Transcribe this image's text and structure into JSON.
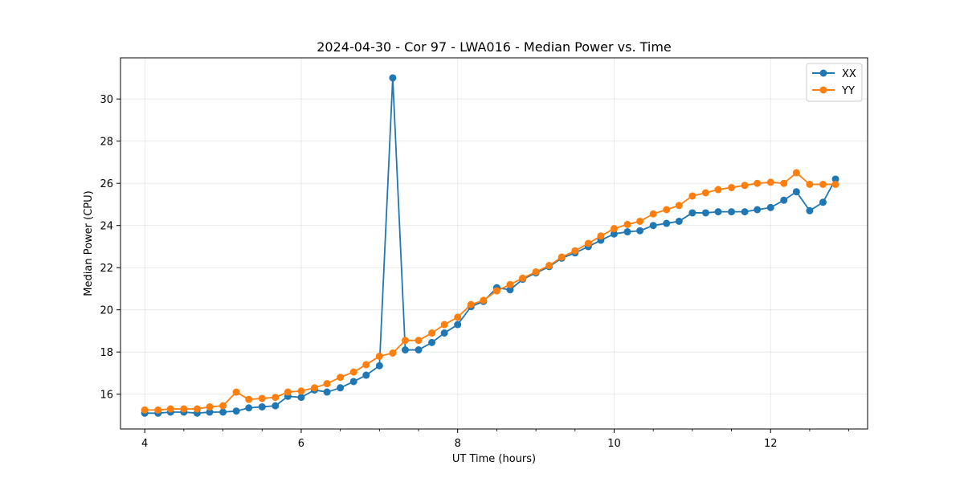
{
  "chart_data": {
    "type": "line",
    "title": "2024-04-30 - Cor 97 - LWA016 - Median Power vs. Time",
    "xlabel": "UT Time (hours)",
    "ylabel": "Median Power (CPU)",
    "xlim": [
      3.69,
      13.24
    ],
    "ylim": [
      14.35,
      31.95
    ],
    "xticks": [
      4,
      6,
      8,
      10,
      12
    ],
    "xtick_labels": [
      "4",
      "6",
      "8",
      "10",
      "12"
    ],
    "yticks": [
      16,
      18,
      20,
      22,
      24,
      26,
      28,
      30
    ],
    "ytick_labels": [
      "16",
      "18",
      "20",
      "22",
      "24",
      "26",
      "28",
      "30"
    ],
    "grid": true,
    "legend_position": "top-right",
    "series": [
      {
        "name": "XX",
        "color": "#1f77b4",
        "x": [
          4.0,
          4.17,
          4.33,
          4.5,
          4.67,
          4.83,
          5.0,
          5.17,
          5.33,
          5.5,
          5.67,
          5.83,
          6.0,
          6.17,
          6.33,
          6.5,
          6.67,
          6.83,
          7.0,
          7.17,
          7.33,
          7.5,
          7.67,
          7.83,
          8.0,
          8.17,
          8.33,
          8.5,
          8.67,
          8.83,
          9.0,
          9.17,
          9.33,
          9.5,
          9.67,
          9.83,
          10.0,
          10.17,
          10.33,
          10.5,
          10.67,
          10.83,
          11.0,
          11.17,
          11.33,
          11.5,
          11.67,
          11.83,
          12.0,
          12.17,
          12.33,
          12.5,
          12.67,
          12.83
        ],
        "y": [
          15.1,
          15.1,
          15.15,
          15.15,
          15.1,
          15.15,
          15.15,
          15.2,
          15.35,
          15.4,
          15.45,
          15.9,
          15.85,
          16.2,
          16.1,
          16.3,
          16.6,
          16.9,
          17.35,
          31.0,
          18.1,
          18.1,
          18.45,
          18.9,
          19.3,
          20.15,
          20.4,
          21.05,
          20.95,
          21.45,
          21.75,
          22.05,
          22.45,
          22.7,
          23.0,
          23.3,
          23.6,
          23.7,
          23.75,
          24.0,
          24.1,
          24.2,
          24.6,
          24.6,
          24.65,
          24.65,
          24.65,
          24.75,
          24.85,
          25.2,
          25.6,
          24.7,
          25.1,
          26.2
        ]
      },
      {
        "name": "YY",
        "color": "#ff7f0e",
        "x": [
          4.0,
          4.17,
          4.33,
          4.5,
          4.67,
          4.83,
          5.0,
          5.17,
          5.33,
          5.5,
          5.67,
          5.83,
          6.0,
          6.17,
          6.33,
          6.5,
          6.67,
          6.83,
          7.0,
          7.17,
          7.33,
          7.5,
          7.67,
          7.83,
          8.0,
          8.17,
          8.33,
          8.5,
          8.67,
          8.83,
          9.0,
          9.17,
          9.33,
          9.5,
          9.67,
          9.83,
          10.0,
          10.17,
          10.33,
          10.5,
          10.67,
          10.83,
          11.0,
          11.17,
          11.33,
          11.5,
          11.67,
          11.83,
          12.0,
          12.17,
          12.33,
          12.5,
          12.67,
          12.83
        ],
        "y": [
          15.25,
          15.25,
          15.3,
          15.3,
          15.3,
          15.4,
          15.45,
          16.1,
          15.75,
          15.8,
          15.85,
          16.1,
          16.15,
          16.3,
          16.5,
          16.8,
          17.05,
          17.4,
          17.8,
          17.95,
          18.55,
          18.55,
          18.9,
          19.3,
          19.65,
          20.25,
          20.45,
          20.9,
          21.2,
          21.5,
          21.8,
          22.1,
          22.5,
          22.8,
          23.15,
          23.5,
          23.85,
          24.05,
          24.2,
          24.55,
          24.75,
          24.95,
          25.4,
          25.55,
          25.7,
          25.8,
          25.9,
          26.0,
          26.05,
          26.0,
          26.5,
          25.95,
          25.95,
          25.95
        ]
      }
    ]
  }
}
